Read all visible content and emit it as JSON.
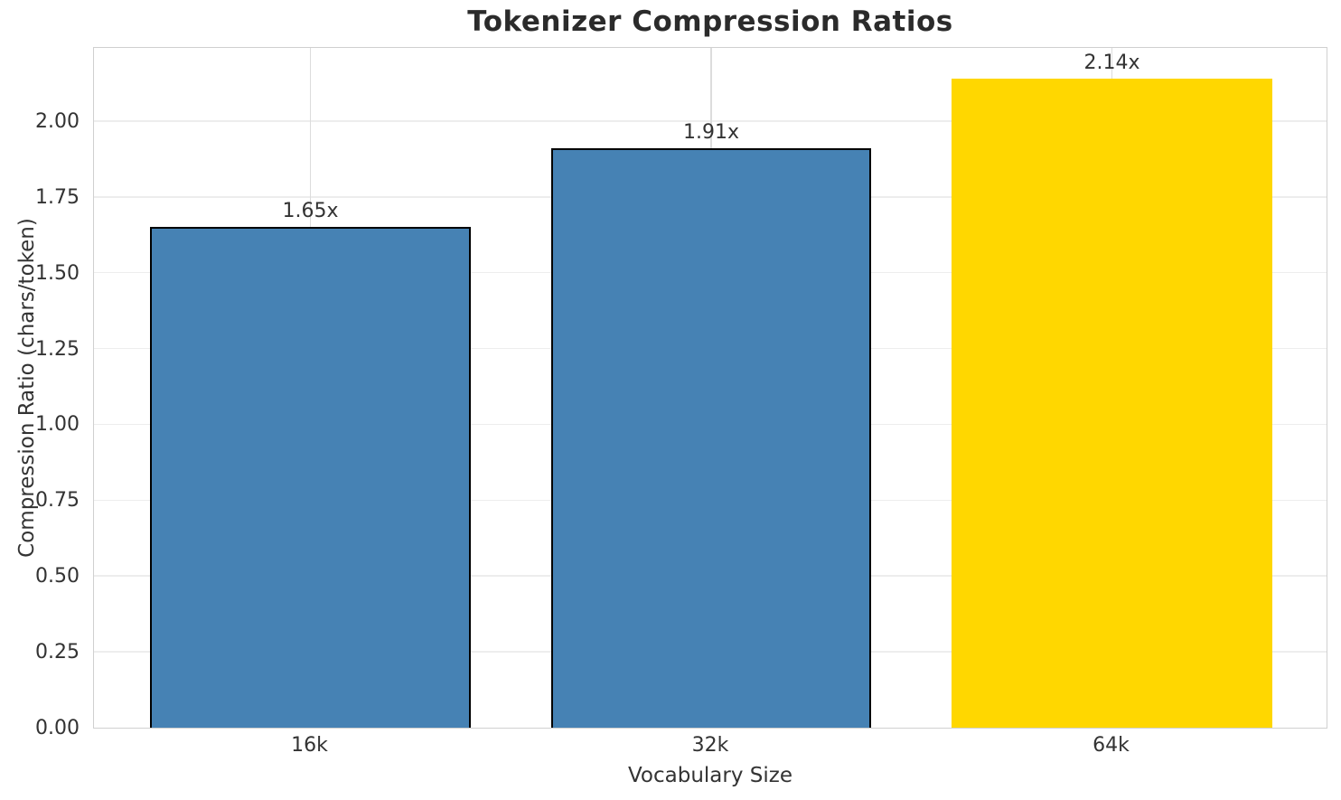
{
  "chart_data": {
    "type": "bar",
    "title": "Tokenizer Compression Ratios",
    "xlabel": "Vocabulary Size",
    "ylabel": "Compression Ratio (chars/token)",
    "categories": [
      "16k",
      "32k",
      "64k"
    ],
    "values": [
      1.65,
      1.91,
      2.14
    ],
    "bar_labels": [
      "1.65x",
      "1.91x",
      "2.14x"
    ],
    "ylim": [
      0,
      2.247
    ],
    "yticks": [
      0,
      0.25,
      0.5,
      0.75,
      1,
      1.25,
      1.5,
      1.75,
      2
    ],
    "ytick_labels": [
      "0.00",
      "0.25",
      "0.50",
      "0.75",
      "1.00",
      "1.25",
      "1.50",
      "1.75",
      "2.00"
    ],
    "grid": true,
    "legend": "none",
    "bar_colors": [
      "#4682B4",
      "#4682B4",
      "#FFD700"
    ],
    "bar_edge_colors": [
      "#000000",
      "#000000",
      "none"
    ],
    "colors": {
      "title_text": "#2b2b2b",
      "axis_text": "#333333",
      "spine": "#d0d0d0",
      "grid_horizontal": "#ededed",
      "grid_vertical": "#dcdcdc",
      "highlight_bar": "#FFD700",
      "default_bar": "#4682B4"
    }
  }
}
